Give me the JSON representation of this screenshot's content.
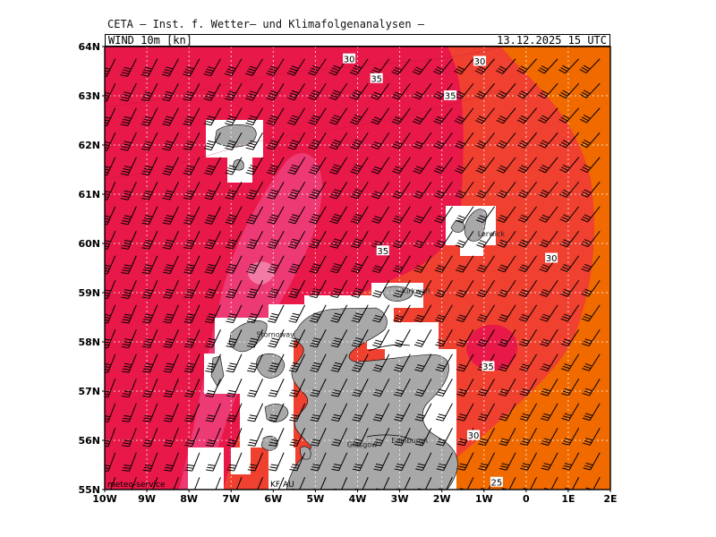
{
  "header": {
    "title": "CETA – Inst. f. Wetter– und Klimafolgenanalysen –",
    "parameter": "WIND 10m [kn]",
    "valid_time": "13.12.2025 15 UTC"
  },
  "map": {
    "lon_range": [
      -10,
      2
    ],
    "lat_range": [
      55,
      64
    ],
    "lat_ticks": [
      "55N",
      "56N",
      "57N",
      "58N",
      "59N",
      "60N",
      "61N",
      "62N",
      "63N",
      "64N"
    ],
    "lon_ticks": [
      "10W",
      "9W",
      "8W",
      "7W",
      "6W",
      "5W",
      "4W",
      "3W",
      "2W",
      "1W",
      "0",
      "1E",
      "2E"
    ],
    "gridlines": true
  },
  "fill_colors": {
    "25_30": "#f06a00",
    "30_35": "#f04030",
    "35_40": "#e81848",
    "40_45": "#ee3a74",
    "45_50": "#f27aa4",
    "land": "#a8a8a8",
    "unresolved": "#ffffff"
  },
  "contour_labels": [
    {
      "text": "30",
      "lon": -4.2,
      "lat": 63.75
    },
    {
      "text": "35",
      "lon": -3.55,
      "lat": 63.35
    },
    {
      "text": "30",
      "lon": -1.1,
      "lat": 63.7
    },
    {
      "text": "35",
      "lon": -1.8,
      "lat": 63.0
    },
    {
      "text": "35",
      "lon": -3.4,
      "lat": 59.85
    },
    {
      "text": "30",
      "lon": 0.6,
      "lat": 59.7
    },
    {
      "text": "35",
      "lon": -0.9,
      "lat": 57.5
    },
    {
      "text": "30",
      "lon": -1.25,
      "lat": 56.1
    },
    {
      "text": "25",
      "lon": -0.7,
      "lat": 55.15
    }
  ],
  "places": [
    {
      "text": "Lerwick",
      "lon": -1.15,
      "lat": 60.15
    },
    {
      "text": "Kirkwall",
      "lon": -2.95,
      "lat": 58.98
    },
    {
      "text": "Stornoway",
      "lon": -6.4,
      "lat": 58.1
    },
    {
      "text": "Edinburgh",
      "lon": -3.2,
      "lat": 55.95
    },
    {
      "text": "Glasgow",
      "lon": -4.25,
      "lat": 55.86
    }
  ],
  "footer": {
    "credit": "meteo-service",
    "model_note": "KF   AU"
  }
}
